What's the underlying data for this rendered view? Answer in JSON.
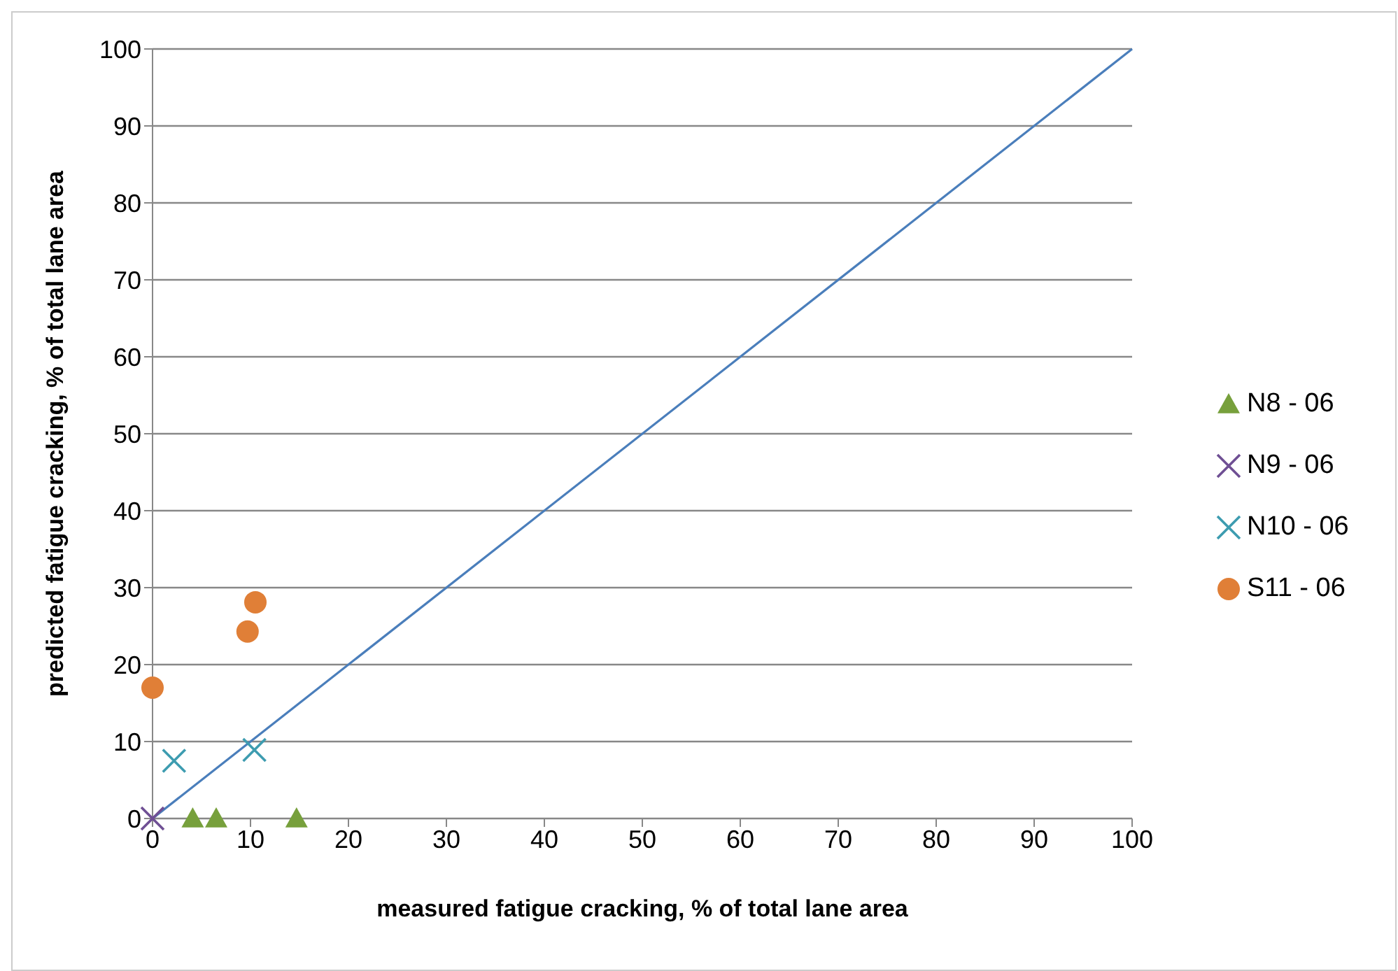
{
  "chart_data": {
    "type": "scatter",
    "xlabel": "measured fatigue cracking, % of total lane area",
    "ylabel": "predicted fatigue cracking, % of total lane area",
    "xlim": [
      0,
      100
    ],
    "ylim": [
      0,
      100
    ],
    "xticks": [
      0,
      10,
      20,
      30,
      40,
      50,
      60,
      70,
      80,
      90,
      100
    ],
    "yticks": [
      0,
      10,
      20,
      30,
      40,
      50,
      60,
      70,
      80,
      90,
      100
    ],
    "grid": "y",
    "legend": "right",
    "series": [
      {
        "name": "N8 - 06",
        "color": "#77a03c",
        "marker": "triangle",
        "x": [
          4.1,
          6.5,
          14.7
        ],
        "values": [
          0,
          0,
          0
        ]
      },
      {
        "name": "N9 - 06",
        "color": "#6f4f94",
        "marker": "cross",
        "x": [
          0
        ],
        "values": [
          0
        ]
      },
      {
        "name": "N10 - 06",
        "color": "#3d9cb0",
        "marker": "cross",
        "x": [
          2.2,
          10.4
        ],
        "values": [
          7.5,
          8.9
        ]
      },
      {
        "name": "S11 - 06",
        "color": "#e07f37",
        "marker": "circle",
        "x": [
          0,
          9.7,
          10.5
        ],
        "values": [
          17,
          24.3,
          28.1
        ]
      },
      {
        "type": "line",
        "color": "#4a7ebb",
        "marker": "none",
        "x": [
          0,
          100
        ],
        "values": [
          0,
          100
        ]
      }
    ]
  }
}
